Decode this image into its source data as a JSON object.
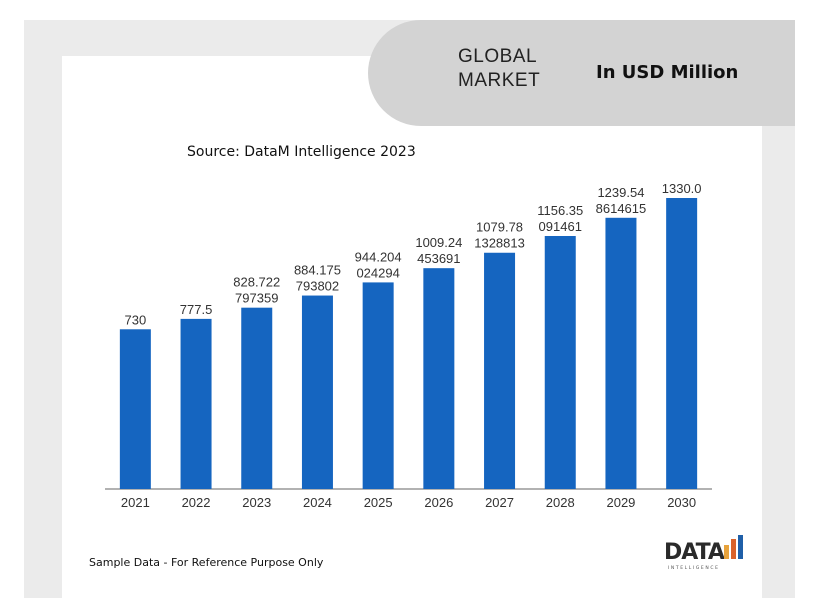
{
  "banner": {
    "title_line1": "GLOBAL",
    "title_line2": "MARKET",
    "unit": "In USD Million"
  },
  "source": "Source: DataM Intelligence 2023",
  "footer": "Sample Data - For Reference Purpose Only",
  "logo": {
    "text": "DATA",
    "subtext": "INTELLIGENCE",
    "colors": [
      "#e8a33c",
      "#d9622b",
      "#1f5fa8"
    ]
  },
  "colors": {
    "bar": "#1565c0",
    "axis": "#666666",
    "label": "#333333"
  },
  "chart_data": {
    "type": "bar",
    "categories": [
      "2021",
      "2022",
      "2023",
      "2024",
      "2025",
      "2026",
      "2027",
      "2028",
      "2029",
      "2030"
    ],
    "values": [
      730,
      777.5,
      828.722797359,
      884.175793802,
      944.204024294,
      1009.24453691,
      1079.781328813,
      1156.35091461,
      1239.548614615,
      1330.0
    ],
    "data_labels": [
      [
        "730"
      ],
      [
        "777.5"
      ],
      [
        "828.722",
        "797359"
      ],
      [
        "884.175",
        "793802"
      ],
      [
        "944.204",
        "024294"
      ],
      [
        "1009.24",
        "453691"
      ],
      [
        "1079.78",
        "1328813"
      ],
      [
        "1156.35",
        "091461"
      ],
      [
        "1239.54",
        "8614615"
      ],
      [
        "1330.0"
      ]
    ],
    "ylim": [
      0,
      1330
    ],
    "grid": false,
    "legend": "none"
  }
}
